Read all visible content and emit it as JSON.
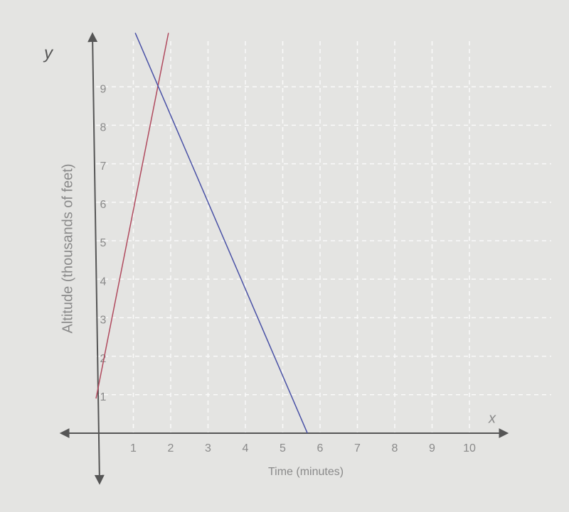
{
  "chart_data": {
    "type": "line",
    "x_label": "Time (minutes)",
    "y_label": "Altitude (thousands of feet)",
    "x_axis_name": "x",
    "y_axis_name": "y",
    "series": [
      {
        "color": "#b04a5e",
        "x": [
          0,
          1.94
        ],
        "values": [
          0.9,
          10.4
        ]
      },
      {
        "color": "#4a52a6",
        "x": [
          1.05,
          5.66
        ],
        "values": [
          10.4,
          0
        ]
      }
    ],
    "xlim": [
      -1,
      11
    ],
    "ylim": [
      -1.2,
      10.6
    ],
    "xticks": [
      1,
      2,
      3,
      4,
      5,
      6,
      7,
      8,
      9,
      10
    ],
    "yticks": [
      1,
      2,
      3,
      4,
      5,
      6,
      7,
      8,
      9
    ],
    "grid": true
  }
}
